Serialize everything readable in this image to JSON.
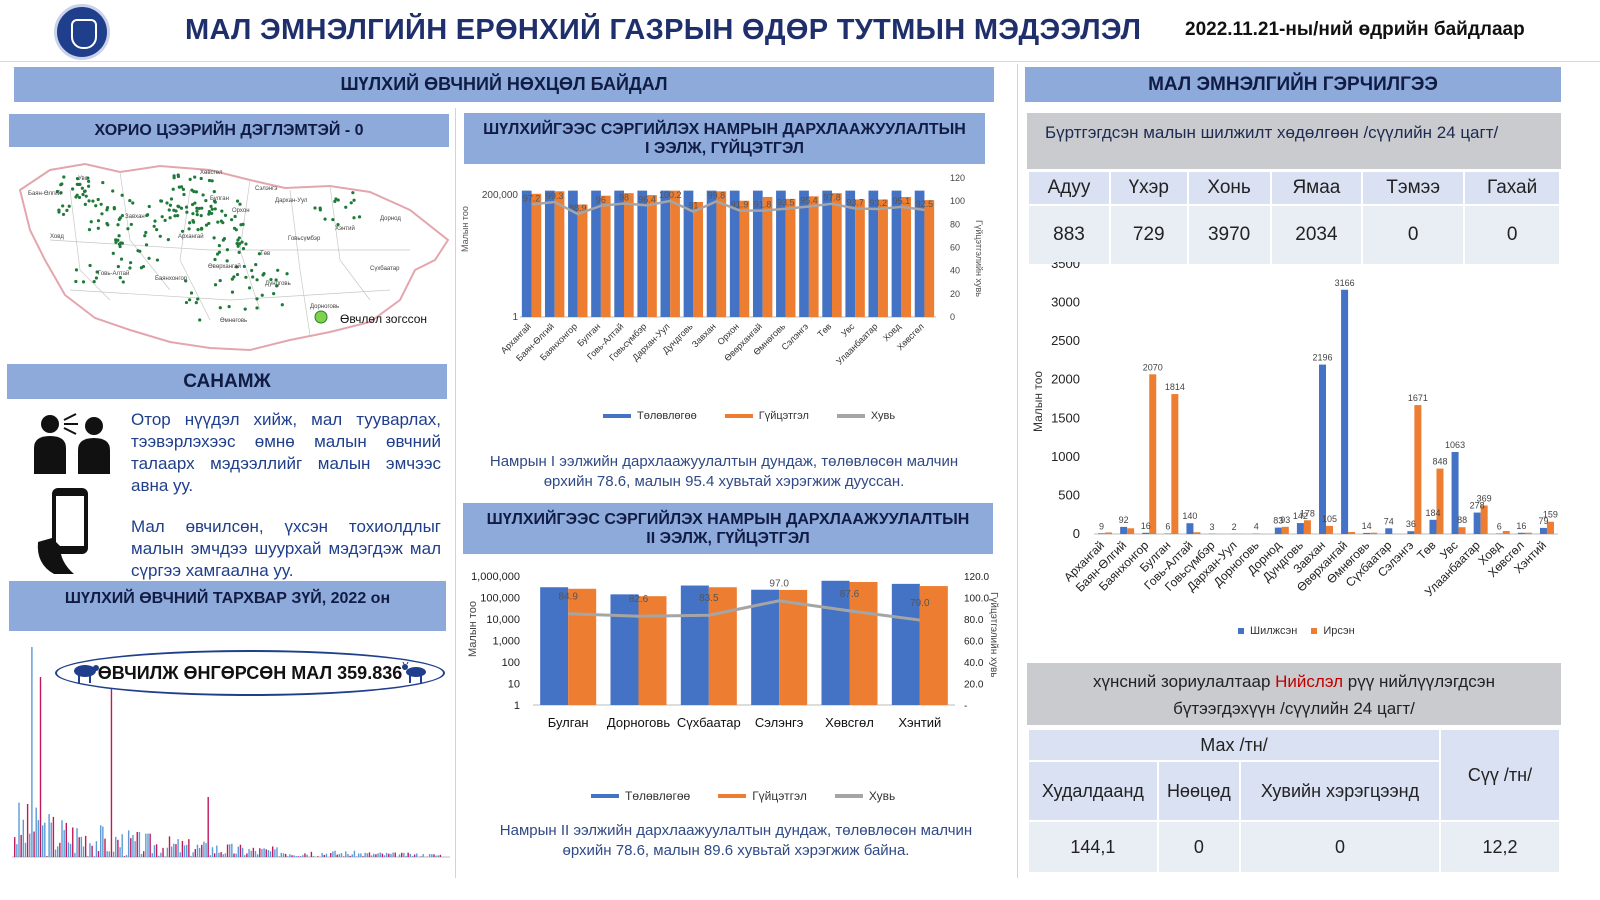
{
  "header": {
    "title": "МАЛ ЭМНЭЛГИЙН ЕРӨНХИЙ ГАЗРЫН ӨДӨР ТУТМЫН МЭДЭЭЛЭЛ",
    "date": "2022.11.21-ны/ний өдрийн байдлаар"
  },
  "left": {
    "band_title": "ШҮЛХИЙ ӨВЧНИЙ НӨХЦӨЛ БАЙДАЛ",
    "quarantine_title": "ХОРИО ЦЭЭРИЙН ДЭГЛЭМТЭЙ - 0",
    "map_labels": [
      "Баян-Өлгий",
      "Ховд",
      "Увс",
      "Завхан",
      "Хөвсгөл",
      "Булган",
      "Говь-Алтай",
      "Баянхонгор",
      "Архангай",
      "Өвөрхангай",
      "Төв",
      "Өмнөговь",
      "Дундговь",
      "Говьсүмбэр",
      "Дорноговь",
      "Хэнтий",
      "Дорнод",
      "Сүхбаатар",
      "Сэлэнгэ",
      "Дархан-Уул",
      "Орхон"
    ],
    "map_legend": "Өвчлөл зогссон",
    "notice_title": "САНАМЖ",
    "notice_text1": "Отор нүүдэл хийж, мал туувар­лах, тээвэрлэхээс өмнө малын өвчний талаарх мэдээллийг малын эмчээс авна уу.",
    "notice_text2": "Мал өвчилсөн, үхсэн тохиолдлыг малын эмчдээ шуурхай мэдэгдэж мал сүргээ хамгаална уу.",
    "spread_title": "ШҮЛХИЙ ӨВЧНИЙ ТАРХВАР ЗҮЙ, 2022 он",
    "spread_total": "ӨВЧИЛЖ ӨНГӨРСӨН МАЛ 359.836"
  },
  "middle": {
    "chart1_title_line1": "ШҮЛХИЙГЭЭС СЭРГИЙЛЭХ НАМРЫН ДАРХЛААЖУУЛАЛТЫН",
    "chart1_title_line2": "I ЭЭЛЖ, ГҮЙЦЭТГЭЛ",
    "chart1_caption": "Намрын I ээлжийн дархлаажуулалтын дундаж, төлөвлөсөн малчин өрхийн 78.6, малын 95.4 хувьтай хэрэгжиж дууссан.",
    "chart2_title_line1": "ШҮЛХИЙГЭЭС СЭРГИЙЛЭХ НАМРЫН ДАРХЛААЖУУЛАЛТЫН",
    "chart2_title_line2": "II ЭЭЛЖ, ГҮЙЦЭТГЭЛ",
    "chart2_caption": "Намрын II ээлжийн дархлаажуулалтын дундаж, төлөвлөсөн малчин өрхийн 78.6, малын 89.6 хувьтай хэрэгжиж байна.",
    "legend": {
      "plan": "Төлөвлөгөө",
      "done": "Гүйцэтгэл",
      "pct": "Хувь"
    }
  },
  "right": {
    "band_title": "МАЛ ЭМНЭЛГИЙН ГЭРЧИЛГЭЭ",
    "inspection_title": "Бүртгэгдсэн малын шилжилт хөдөлгөөн /сүүлийн 24 цагт/",
    "inspection_headers": [
      "Адуу",
      "Үхэр",
      "Хонь",
      "Ямаа",
      "Тэмээ",
      "Гахай"
    ],
    "inspection_values": [
      "883",
      "729",
      "3970",
      "2034",
      "0",
      "0"
    ],
    "food_title_pre": "хүнсний зориулалтаар ",
    "food_title_red": "Нийслэл",
    "food_title_post": " рүү нийлүүлэгдсэн",
    "food_title_line2": "бүтээгдэхүүн /сүүлийн 24 цагт/",
    "meat_header": "Мах /тн/",
    "milk_header": "Сүү /тн/",
    "sub_headers": [
      "Худалдаанд",
      "Нөөцөд",
      "Хувийн хэрэгцээнд"
    ],
    "food_values": [
      "144,1",
      "0",
      "0",
      "12,2"
    ],
    "legend": {
      "moved": "Шилжсэн",
      "arrived": "Ирсэн"
    }
  },
  "colors": {
    "blue": "#4472c4",
    "orange": "#ed7d31",
    "gray": "#a5a5a5",
    "band": "#8eaadb",
    "green": "#1f7a3a"
  },
  "chart_data": [
    {
      "type": "bar",
      "title": "ШҮЛХИЙГЭЭС СЭРГИЙЛЭХ НАМРЫН ДАРХЛААЖУУЛАЛТЫН I ЭЭЛЖ, ГҮЙЦЭТГЭЛ",
      "categories": [
        "Архангай",
        "Баян-Өлгий",
        "Баянхонгор",
        "Булган",
        "Говь-Алтай",
        "Говьсүмбэр",
        "Дархан-Уул",
        "Дундговь",
        "Завхан",
        "Орхон",
        "Өвөрхангай",
        "Өмнөговь",
        "Сэлэнгэ",
        "Төв",
        "Увс",
        "Улаанбаатар",
        "Ховд",
        "Хөвсгөл"
      ],
      "series": [
        {
          "name": "Төлөвлөгөө",
          "values": [
            200000,
            200000,
            200000,
            200000,
            200000,
            200000,
            200000,
            200000,
            200000,
            200000,
            200000,
            200000,
            200000,
            200000,
            200000,
            200000,
            200000,
            200000
          ]
        },
        {
          "name": "Гүйцэтгэл",
          "values": [
            195000,
            199000,
            178000,
            192000,
            196000,
            193000,
            200000,
            182000,
            199000,
            184000,
            190000,
            187000,
            191000,
            196000,
            186000,
            186000,
            190000,
            185000
          ]
        },
        {
          "name": "Хувь",
          "values": [
            97.2,
            99.3,
            88.9,
            96,
            98,
            96.4,
            100.2,
            91,
            99.8,
            91.9,
            91.8,
            93.5,
            95.4,
            97.8,
            93.7,
            93.2,
            95.1,
            92.5
          ]
        }
      ],
      "ylabel": "Малын тоо",
      "y2label": "Гүйцэтгэлийн хувь",
      "y_ticks": [
        "1",
        "200,000"
      ],
      "y2_ticks": [
        "0",
        "20",
        "40",
        "60",
        "80",
        "100",
        "120"
      ],
      "y2lim": [
        0,
        120
      ]
    },
    {
      "type": "bar",
      "title": "ШҮЛХИЙГЭЭС СЭРГИЙЛЭХ НАМРЫН ДАРХЛААЖУУЛАЛТЫН II ЭЭЛЖ, ГҮЙЦЭТГЭЛ",
      "categories": [
        "Булган",
        "Дорноговь",
        "Сүхбаатар",
        "Сэлэнгэ",
        "Хөвсгөл",
        "Хэнтий"
      ],
      "series": [
        {
          "name": "Төлөвлөгөө",
          "values": [
            300000,
            140000,
            360000,
            230000,
            600000,
            430000
          ]
        },
        {
          "name": "Гүйцэтгэл",
          "values": [
            255000,
            115000,
            300000,
            225000,
            525000,
            340000
          ]
        },
        {
          "name": "Хувь",
          "values": [
            84.9,
            82.6,
            83.5,
            97.0,
            87.6,
            79.0
          ]
        }
      ],
      "ylabel": "Малын тоо",
      "y2label": "Гүйцэтгэлийн хувь",
      "y_ticks": [
        "1",
        "10",
        "100",
        "1,000",
        "10,000",
        "100,000",
        "1,000,000"
      ],
      "y2_ticks": [
        "-",
        "20.0",
        "40.0",
        "60.0",
        "80.0",
        "100.0",
        "120.0"
      ],
      "ylim": [
        1,
        1000000
      ],
      "y2lim": [
        0,
        120
      ],
      "yscale": "log"
    },
    {
      "type": "bar",
      "title": "",
      "categories": [
        "Архангай",
        "Баян-Өлгий",
        "Баянхонгор",
        "Булган",
        "Говь-Алтай",
        "Говьсүмбэр",
        "Дархан-Уул",
        "Дорноговь",
        "Дорнод",
        "Дундговь",
        "Завхан",
        "Өвөрхангай",
        "Өмнөговь",
        "Сүхбаатар",
        "Сэлэнгэ",
        "Төв",
        "Увс",
        "Улаанбаатар",
        "Ховд",
        "Хөвсгөл",
        "Хэнтий"
      ],
      "series": [
        {
          "name": "Шилжсэн",
          "values": [
            9,
            92,
            16,
            6,
            140,
            3,
            2,
            4,
            83,
            142,
            2196,
            3166,
            14,
            74,
            36,
            184,
            1063,
            278,
            6,
            16,
            79
          ]
        },
        {
          "name": "Ирсэн",
          "values": [
            20,
            74,
            2070,
            1814,
            23,
            2,
            2,
            0,
            93,
            178,
            105,
            26,
            17,
            2,
            1671,
            848,
            88,
            369,
            39,
            17,
            159
          ]
        }
      ],
      "ylabel": "Малын тоо",
      "ylim": [
        0,
        3500
      ],
      "y_ticks": [
        "0",
        "500",
        "1000",
        "1500",
        "2000",
        "2500",
        "3000",
        "3500"
      ],
      "labels": [
        "920",
        "9274",
        "16",
        "6",
        "140 23",
        "3",
        "2 2",
        "4",
        "8393",
        "142178",
        "2196",
        "3166",
        "14 17",
        "74 2",
        "36",
        "184",
        "1063",
        "278",
        "639",
        "16 17",
        "79",
        "2070",
        "1814",
        "105",
        "26",
        "1671",
        "848",
        "88",
        "369",
        "159"
      ]
    }
  ]
}
